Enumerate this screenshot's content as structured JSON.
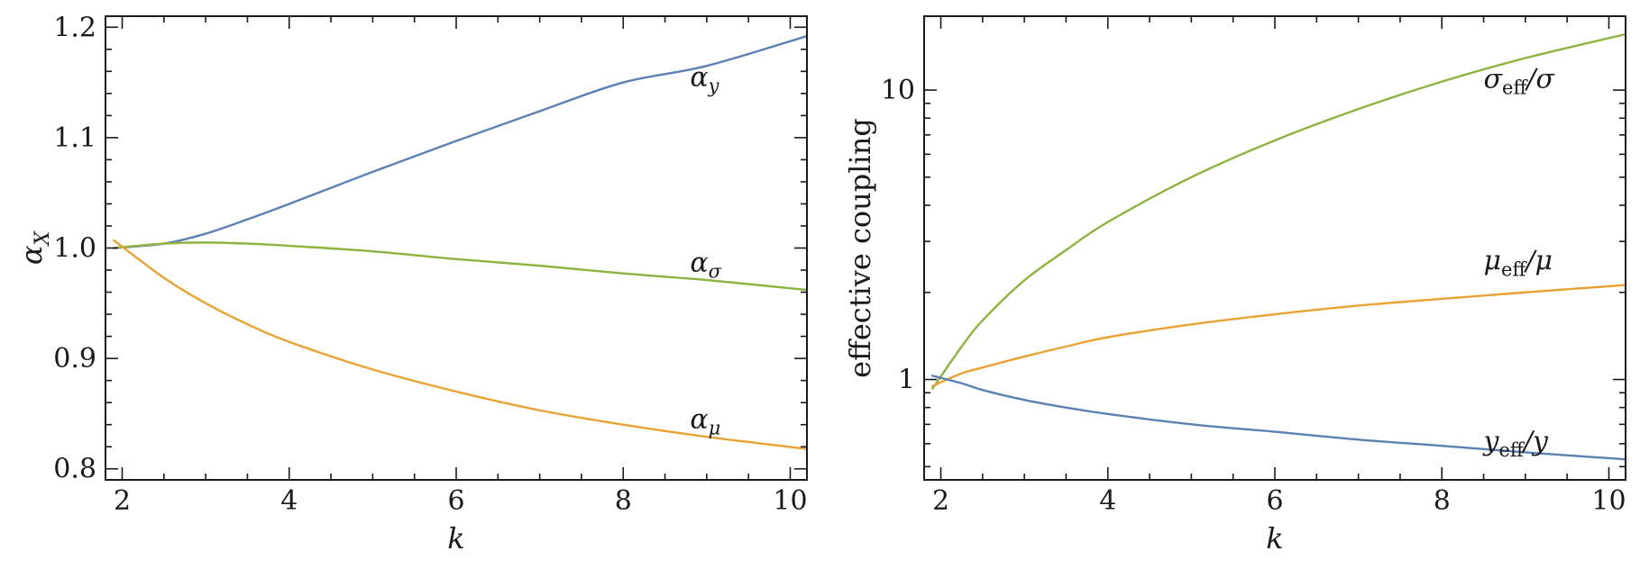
{
  "colors": {
    "blue": "#5b80b4",
    "green": "#8db33f",
    "orange": "#e9a132"
  },
  "chart_data": [
    {
      "type": "line",
      "title": "",
      "xlabel": "k",
      "ylabel_main": "α",
      "ylabel_sub": "X",
      "xlim": [
        1.8,
        10.2
      ],
      "ylim": [
        0.79,
        1.21
      ],
      "yscale": "linear",
      "xticks": [
        2,
        4,
        6,
        8,
        10
      ],
      "xtick_labels": [
        "2",
        "4",
        "6",
        "8",
        "10"
      ],
      "yticks": [
        0.8,
        0.9,
        1.0,
        1.1,
        1.2
      ],
      "ytick_labels": [
        "0.8",
        "0.9",
        "1.0",
        "1.1",
        "1.2"
      ],
      "x": [
        1.9,
        2.5,
        3,
        3.5,
        4,
        5,
        6,
        7,
        8,
        9,
        10.2
      ],
      "series": [
        {
          "name": "alpha_y",
          "label_main": "α",
          "label_sub": "y",
          "color_key": "blue",
          "label_anchor": [
            8.8,
            1.147
          ],
          "values": [
            1.0,
            1.004,
            1.013,
            1.026,
            1.04,
            1.069,
            1.097,
            1.124,
            1.15,
            1.165,
            1.192
          ]
        },
        {
          "name": "alpha_sigma",
          "label_main": "α",
          "label_sub": "σ",
          "color_key": "green",
          "label_anchor": [
            8.8,
            0.979
          ],
          "values": [
            1.0,
            1.004,
            1.005,
            1.004,
            1.002,
            0.997,
            0.99,
            0.984,
            0.977,
            0.971,
            0.962
          ]
        },
        {
          "name": "alpha_mu",
          "label_main": "α",
          "label_sub": "μ",
          "color_key": "orange",
          "label_anchor": [
            8.8,
            0.837
          ],
          "values": [
            1.007,
            0.973,
            0.95,
            0.931,
            0.915,
            0.89,
            0.87,
            0.853,
            0.84,
            0.829,
            0.818
          ]
        }
      ]
    },
    {
      "type": "line",
      "title": "",
      "xlabel": "k",
      "ylabel": "effective coupling",
      "xlim": [
        1.8,
        10.2
      ],
      "ylim": [
        0.45,
        18.0
      ],
      "yscale": "log",
      "xticks": [
        2,
        4,
        6,
        8,
        10
      ],
      "xtick_labels": [
        "2",
        "4",
        "6",
        "8",
        "10"
      ],
      "yticks": [
        1,
        10
      ],
      "ytick_labels": [
        "1",
        "10"
      ],
      "x": [
        1.9,
        2.25,
        2.5,
        3,
        3.5,
        4,
        5,
        6,
        7,
        8,
        9,
        10.2
      ],
      "series": [
        {
          "name": "sigma_eff",
          "label_main": "σ",
          "label_sub": "eff",
          "label_tail": "/σ",
          "color_key": "green",
          "label_anchor": [
            8.5,
            10.2
          ],
          "values": [
            0.93,
            1.3,
            1.6,
            2.2,
            2.8,
            3.5,
            5.0,
            6.7,
            8.6,
            10.7,
            12.9,
            15.6
          ]
        },
        {
          "name": "mu_eff",
          "label_main": "μ",
          "label_sub": "eff",
          "label_tail": "/μ",
          "color_key": "orange",
          "label_anchor": [
            8.5,
            2.4
          ],
          "values": [
            0.95,
            1.05,
            1.1,
            1.2,
            1.3,
            1.4,
            1.55,
            1.68,
            1.8,
            1.9,
            2.0,
            2.12
          ]
        },
        {
          "name": "y_eff",
          "label_main": "y",
          "label_sub": "eff",
          "label_tail": "/y",
          "color_key": "blue",
          "label_anchor": [
            8.5,
            0.57
          ],
          "values": [
            1.03,
            0.97,
            0.92,
            0.85,
            0.8,
            0.76,
            0.7,
            0.66,
            0.62,
            0.59,
            0.56,
            0.53
          ]
        }
      ]
    }
  ]
}
